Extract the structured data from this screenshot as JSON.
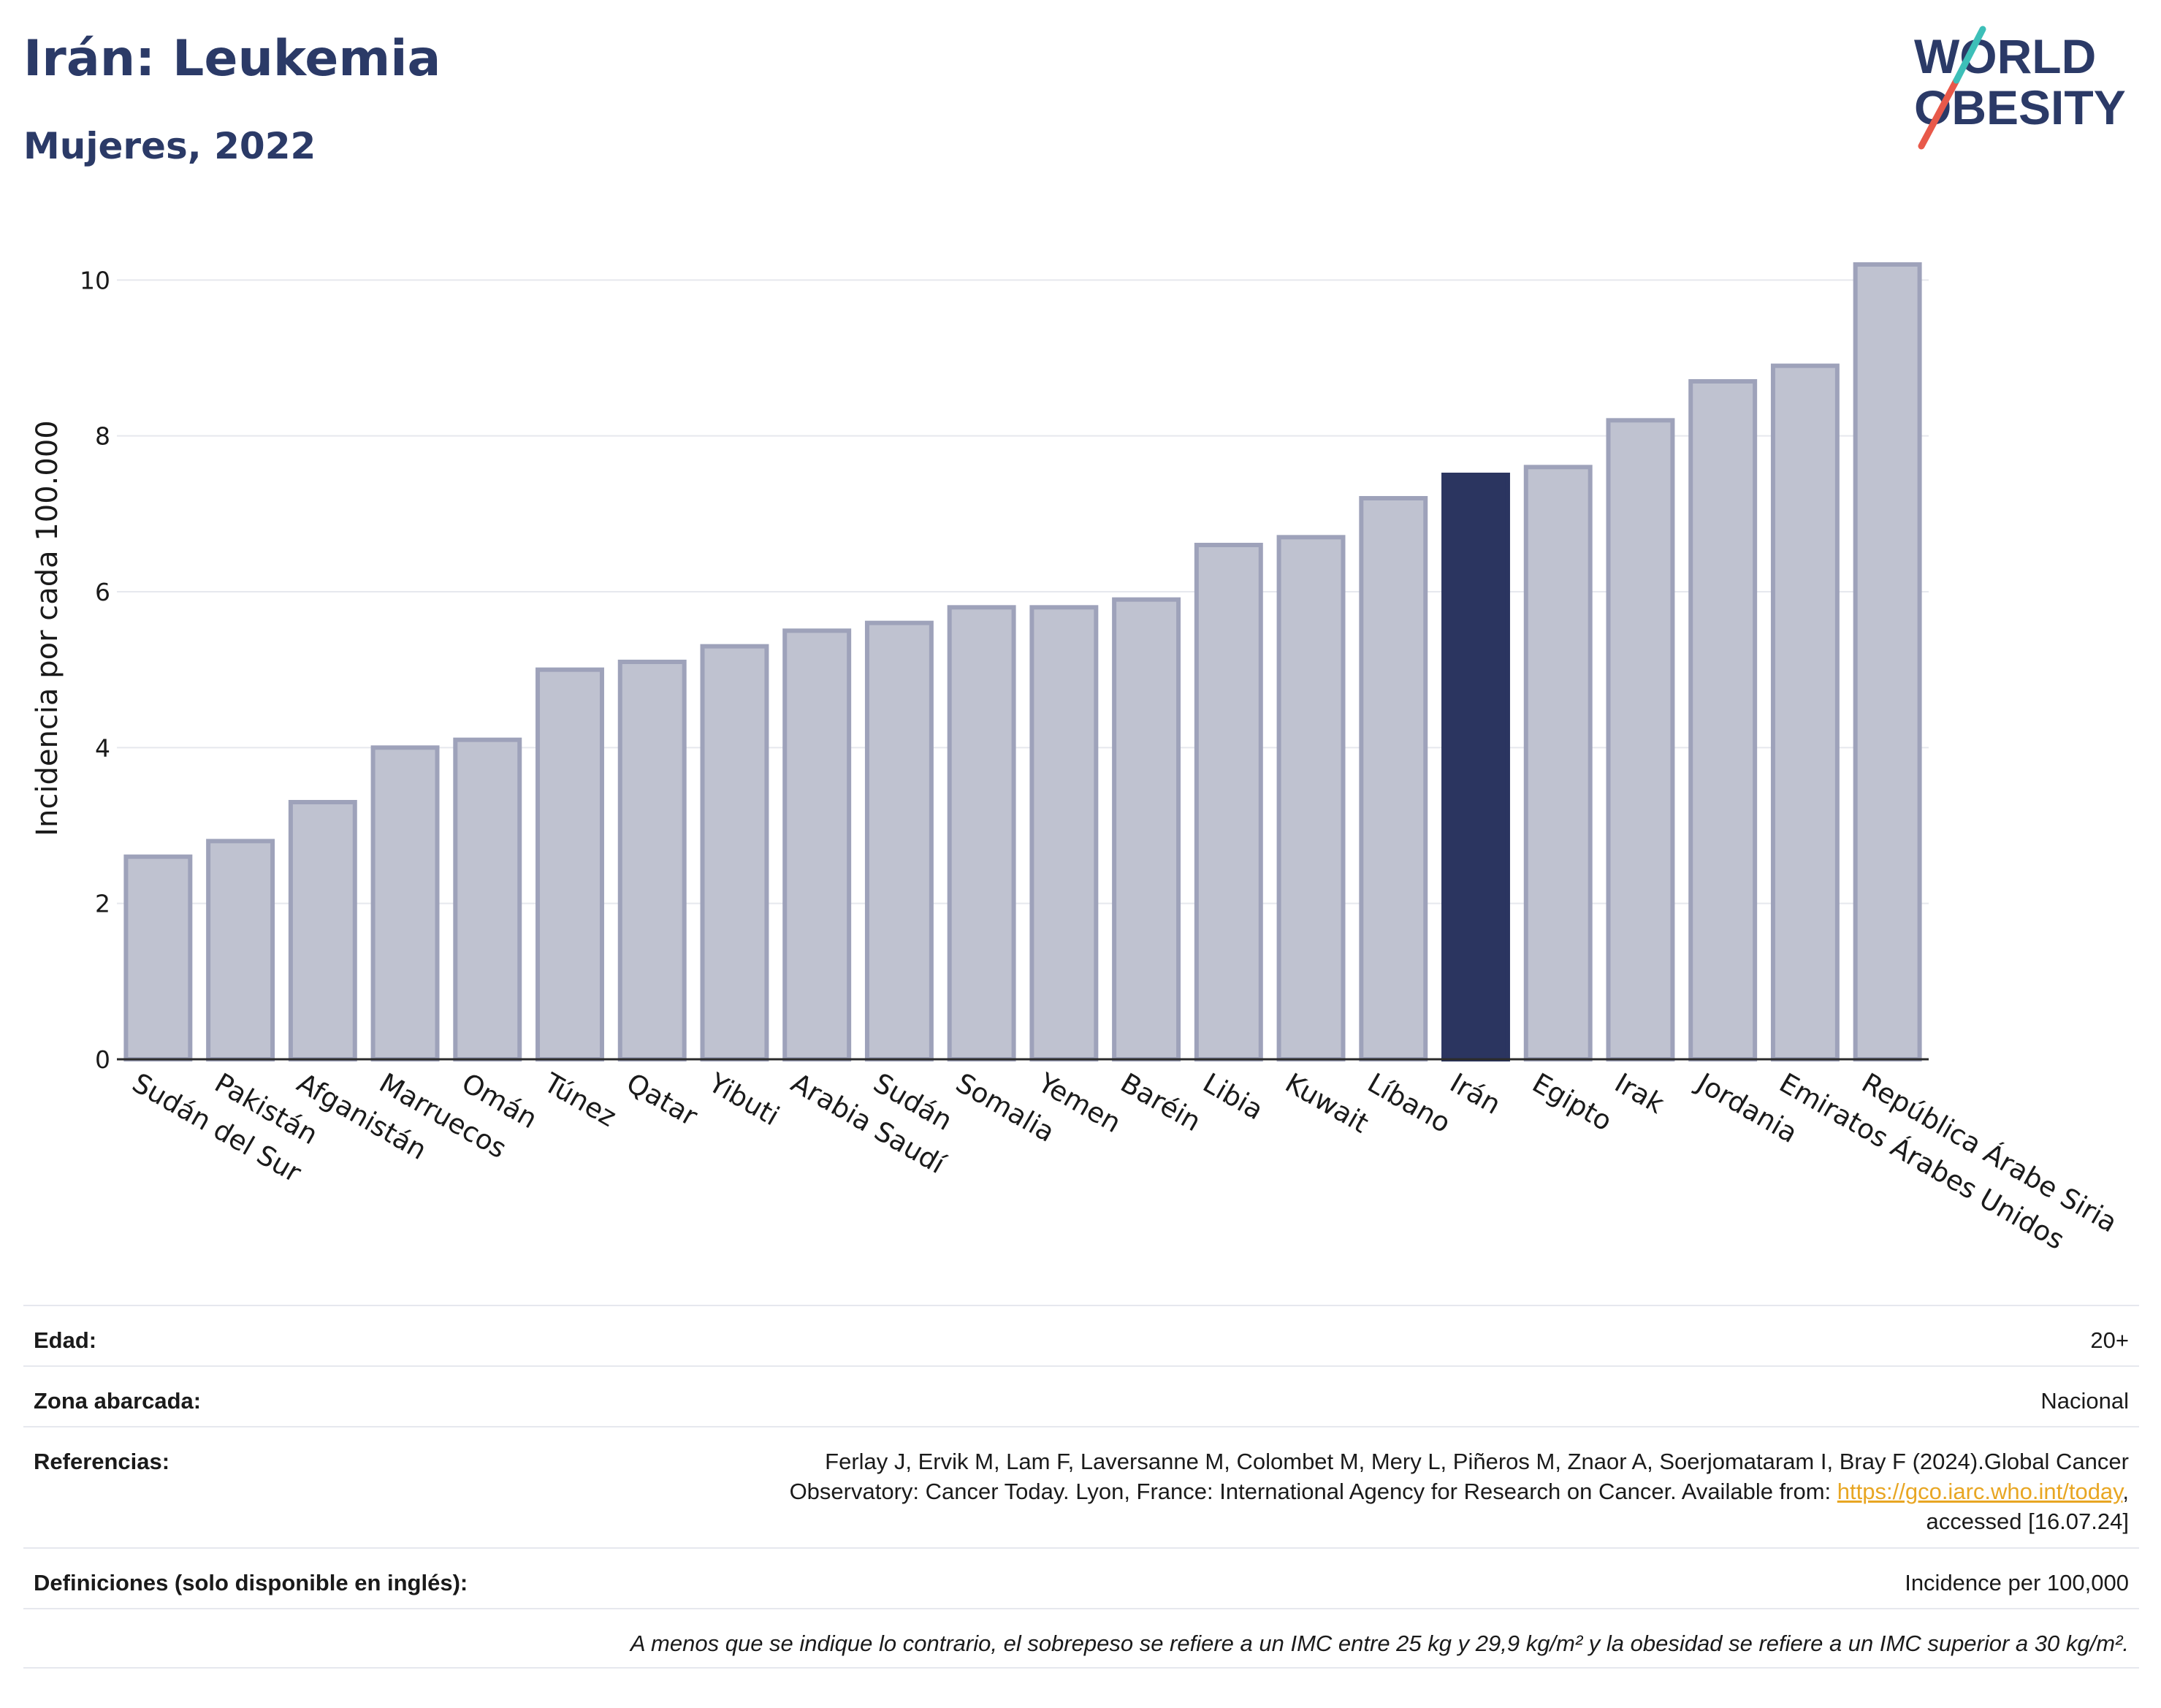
{
  "header": {
    "title": "Irán: Leukemia",
    "subtitle": "Mujeres, 2022"
  },
  "logo": {
    "line1": "WORLD",
    "line2": "OBESITY",
    "text_color": "#2b3a67",
    "slash_colors": [
      "#e8594a",
      "#3dbfb8"
    ]
  },
  "chart_data": {
    "type": "bar",
    "ylabel": "Incidencia por cada 100.000",
    "xlabel": "",
    "ylim": [
      0,
      10.5
    ],
    "yticks": [
      0,
      2,
      4,
      6,
      8,
      10
    ],
    "grid": true,
    "highlight": "Irán",
    "colors": {
      "bar": "#bfc2d0",
      "bar_border": "#9ea2ba",
      "highlight": "#2b3560",
      "axis": "#2b2b2b"
    },
    "categories": [
      "Sudán del Sur",
      "Pakistán",
      "Afganistán",
      "Marruecos",
      "Omán",
      "Túnez",
      "Qatar",
      "Yibuti",
      "Arabia Saudí",
      "Sudán",
      "Somalia",
      "Yemen",
      "Baréin",
      "Libia",
      "Kuwait",
      "Líbano",
      "Irán",
      "Egipto",
      "Irak",
      "Jordania",
      "Emiratos Árabes Unidos",
      "República Árabe Siria"
    ],
    "values": [
      2.6,
      2.8,
      3.3,
      4.0,
      4.1,
      5.0,
      5.1,
      5.3,
      5.5,
      5.6,
      5.8,
      5.8,
      5.9,
      6.6,
      6.7,
      7.2,
      7.5,
      7.6,
      8.2,
      8.7,
      8.9,
      10.2
    ]
  },
  "meta": {
    "age_label": "Edad:",
    "age_value": "20+",
    "zone_label": "Zona abarcada:",
    "zone_value": "Nacional",
    "refs_label": "Referencias:",
    "refs_line1": "Ferlay J, Ervik M, Lam F, Laversanne M, Colombet M, Mery L, Piñeros M, Znaor A, Soerjomataram I, Bray F (2024).Global Cancer",
    "refs_line2": "Observatory: Cancer Today. Lyon, France: International Agency for Research on Cancer. Available from: ",
    "refs_link": "https://gco.iarc.who.int/today",
    "refs_line2_end": ",",
    "refs_line3": "accessed [16.07.24]",
    "defs_label": "Definiciones (solo disponible en inglés):",
    "defs_value": "Incidence per 100,000",
    "note": "A menos que se indique lo contrario, el sobrepeso se refiere a un IMC entre 25 kg y 29,9 kg/m² y la obesidad se refiere a un IMC superior a 30 kg/m²."
  }
}
